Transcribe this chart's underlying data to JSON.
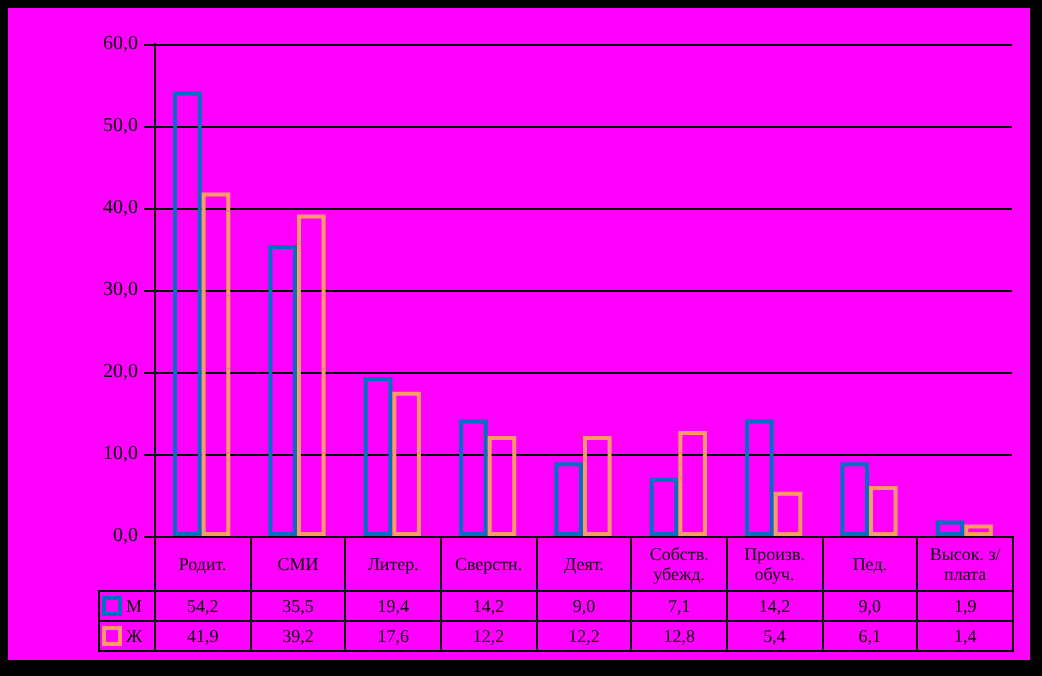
{
  "chart_data": {
    "type": "bar",
    "categories": [
      "Родит.",
      "СМИ",
      "Литер.",
      "Сверстн.",
      "Деят.",
      "Собств. убежд.",
      "Произв. обуч.",
      "Пед.",
      "Высок. з/плата"
    ],
    "series": [
      {
        "name": "М",
        "color": "#0070c0",
        "values": [
          54.2,
          35.5,
          19.4,
          14.2,
          9.0,
          7.1,
          14.2,
          9.0,
          1.9
        ],
        "value_labels": [
          "54,2",
          "35,5",
          "19,4",
          "14,2",
          "9,0",
          "7,1",
          "14,2",
          "9,0",
          "1,9"
        ]
      },
      {
        "name": "Ж",
        "color": "#ff9966",
        "values": [
          41.9,
          39.2,
          17.6,
          12.2,
          12.2,
          12.8,
          5.4,
          6.1,
          1.4
        ],
        "value_labels": [
          "41,9",
          "39,2",
          "17,6",
          "12,2",
          "12,2",
          "12,8",
          "5,4",
          "6,1",
          "1,4"
        ]
      }
    ],
    "ylim": [
      0,
      60
    ],
    "yticks": [
      {
        "value": 0,
        "label": "0,0"
      },
      {
        "value": 10,
        "label": "10,0"
      },
      {
        "value": 20,
        "label": "20,0"
      },
      {
        "value": 30,
        "label": "30,0"
      },
      {
        "value": 40,
        "label": "40,0"
      },
      {
        "value": 50,
        "label": "50,0"
      },
      {
        "value": 60,
        "label": "60,0"
      }
    ],
    "grid": "y",
    "legend": "bottom left"
  }
}
